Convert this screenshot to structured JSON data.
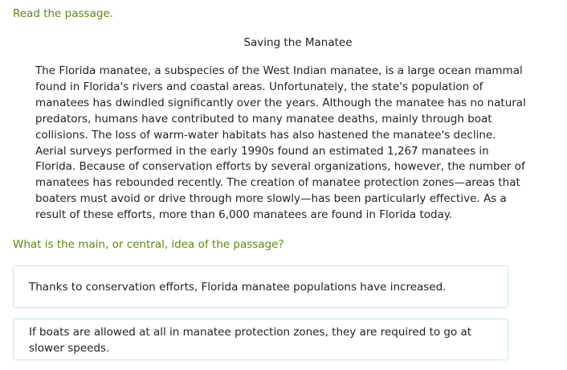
{
  "instructions": "Read the passage.",
  "passage": {
    "title": "Saving the Manatee",
    "lines": [
      "The Florida manatee, a subspecies of the West Indian manatee, is a large ocean mammal",
      "found in Florida's rivers and coastal areas. Unfortunately, the state's population of",
      "manatees has dwindled significantly over the years. Although the manatee has no natural",
      "predators, humans have contributed to many manatee deaths, mainly through boat",
      "collisions. The loss of warm-water habitats has also hastened the manatee's decline.",
      "Aerial surveys performed in the early 1990s found an estimated 1,267 manatees in",
      "Florida. Because of conservation efforts by several organizations, however, the number of",
      "manatees has rebounded recently. The creation of manatee protection zones—areas that",
      "boaters must avoid or drive through more slowly—has been particularly effective. As a",
      "result of these efforts, more than 6,000 manatees are found in Florida today."
    ]
  },
  "question": "What is the main, or central, idea of the passage?",
  "choices": [
    {
      "text": "Thanks to conservation efforts, Florida manatee populations have increased."
    },
    {
      "text": "If boats are allowed at all in manatee protection zones, they are required to go at slower speeds."
    }
  ],
  "colors": {
    "prompt": "#5b8a0a",
    "choice_border": "#b8e6f5"
  }
}
